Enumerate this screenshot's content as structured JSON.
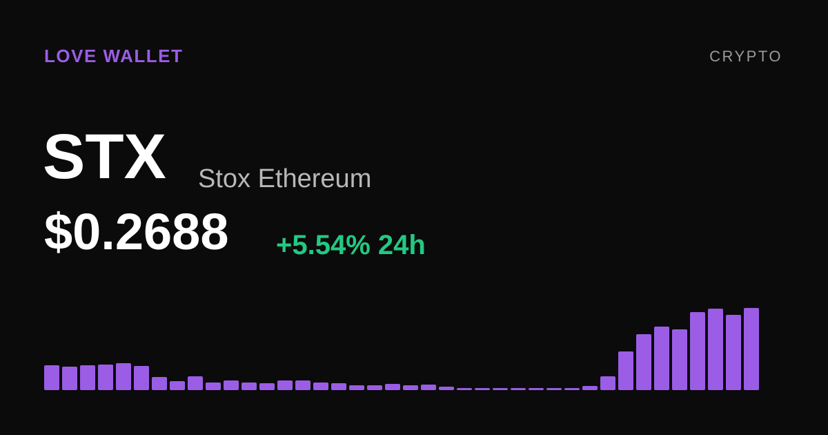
{
  "brand": "LOVE WALLET",
  "category": "CRYPTO",
  "symbol": "STX",
  "name": "Stox Ethereum",
  "price": "$0.2688",
  "change": "+5.54% 24h",
  "chart_data": {
    "type": "bar",
    "color": "#9b5de5",
    "values": [
      36,
      34,
      36,
      37,
      39,
      35,
      19,
      13,
      20,
      11,
      14,
      11,
      10,
      14,
      14,
      11,
      10,
      7,
      7,
      9,
      7,
      8,
      5,
      3,
      3,
      3,
      3,
      3,
      3,
      3,
      6,
      20,
      56,
      81,
      92,
      88,
      113,
      118,
      109,
      119
    ]
  }
}
